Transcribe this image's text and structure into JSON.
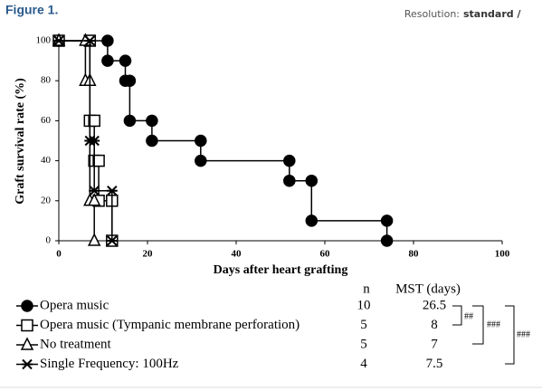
{
  "header": {
    "title": "Figure 1.",
    "resolution_label": "Resolution:",
    "resolution": "standard /"
  },
  "chart_data": {
    "type": "line",
    "x_label": "Days after heart grafting",
    "y_label": "Graft survival rate (%)",
    "xlim": [
      0,
      100
    ],
    "xticks": [
      0,
      20,
      40,
      60,
      80,
      100
    ],
    "ylim": [
      0,
      100
    ],
    "yticks": [
      0,
      20,
      40,
      60,
      80,
      100
    ],
    "table_headers": [
      "n",
      "MST (days)"
    ],
    "series": [
      {
        "name": "Opera music",
        "color": "#000000",
        "marker": "circle",
        "n": 10,
        "mst": 26.5,
        "x": [
          0,
          11,
          11,
          15,
          15,
          16,
          16,
          21,
          21,
          32,
          32,
          52,
          52,
          57,
          57,
          74,
          74
        ],
        "values": [
          100,
          100,
          90,
          90,
          80,
          80,
          60,
          60,
          50,
          50,
          40,
          40,
          30,
          30,
          10,
          10,
          0
        ]
      },
      {
        "name": "Opera music (Tympanic membrane perforation)",
        "color": "#000000",
        "marker": "square",
        "n": 5,
        "mst": 8,
        "x": [
          0,
          7,
          7,
          8,
          8,
          9,
          9,
          12,
          12
        ],
        "values": [
          100,
          100,
          60,
          60,
          40,
          40,
          20,
          20,
          0
        ]
      },
      {
        "name": "No treatment",
        "color": "#000000",
        "marker": "triangle",
        "n": 5,
        "mst": 7,
        "x": [
          0,
          6,
          6,
          7,
          7,
          8,
          8
        ],
        "values": [
          100,
          100,
          80,
          80,
          20,
          20,
          0
        ]
      },
      {
        "name": "Single Frequency: 100Hz",
        "color": "#000000",
        "marker": "star",
        "n": 4,
        "mst": 7.5,
        "x": [
          0,
          7,
          7,
          8,
          8,
          12,
          12
        ],
        "values": [
          100,
          100,
          50,
          50,
          25,
          25,
          0
        ]
      }
    ],
    "annotations": [
      "##",
      "###",
      "###"
    ]
  }
}
